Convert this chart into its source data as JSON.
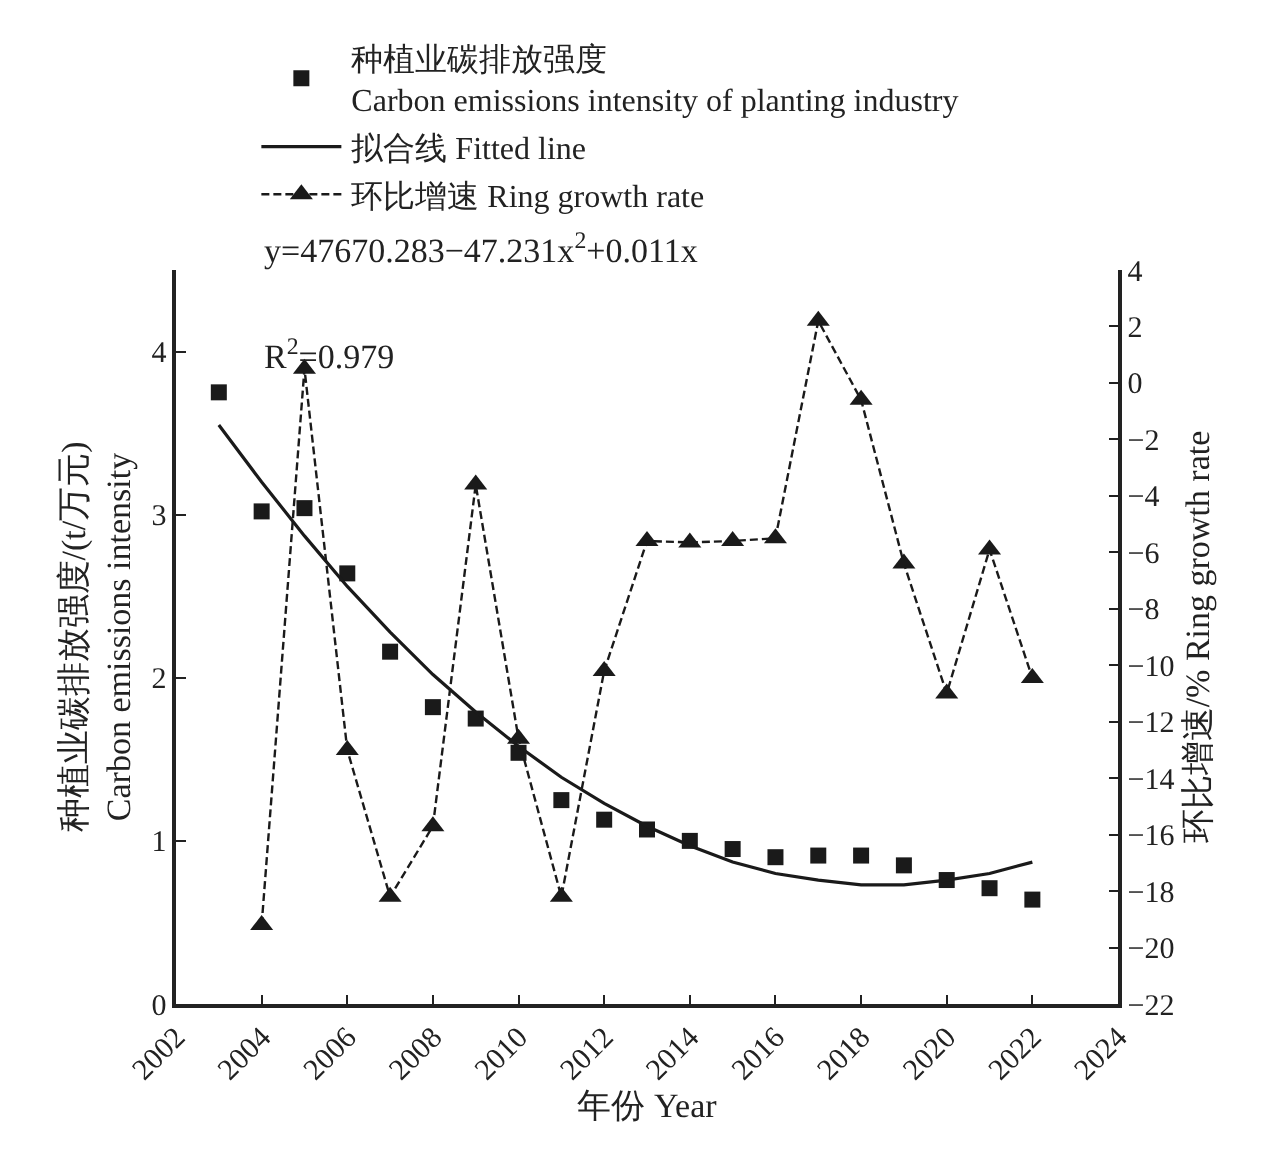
{
  "chart_data": {
    "type": "scatter",
    "xlabel": "年份 Year",
    "ylabel": "种植业碳排放强度/(t/万元)\nCarbon emissions intensity",
    "y2label": "环比增速/% Ring growth rate",
    "xlim": [
      2002,
      2024
    ],
    "xticks": [
      2002,
      2004,
      2006,
      2008,
      2010,
      2012,
      2014,
      2016,
      2018,
      2020,
      2022,
      2024
    ],
    "ylim": [
      0,
      4.5
    ],
    "yticks": [
      0,
      1,
      2,
      3,
      4
    ],
    "y2lim": [
      -22,
      4
    ],
    "y2ticks": [
      -22,
      -20,
      -18,
      -16,
      -14,
      -12,
      -10,
      -8,
      -6,
      -4,
      -2,
      0,
      2,
      4
    ],
    "grid": false,
    "legend": "top left",
    "annotations": [
      "y=47670.283−47.231x$^{2}$+0.011x",
      "R$^{2}$=0.979"
    ],
    "series": [
      {
        "name": "种植业碳排放强度\nCarbon emissions intensity of planting industry",
        "marker": "square",
        "color": "#1a1a1a",
        "x": [
          2003,
          2004,
          2005,
          2006,
          2007,
          2008,
          2009,
          2010,
          2011,
          2012,
          2013,
          2014,
          2015,
          2016,
          2017,
          2018,
          2019,
          2020,
          2021,
          2022
        ],
        "values": [
          3.75,
          3.02,
          3.04,
          2.64,
          2.16,
          1.82,
          1.75,
          1.54,
          1.25,
          1.13,
          1.07,
          1.0,
          0.95,
          0.9,
          0.91,
          0.91,
          0.85,
          0.76,
          0.71,
          0.64
        ]
      },
      {
        "name": "拟合线 Fitted line",
        "type": "line",
        "line_style": "solid",
        "marker": "none",
        "color": "#1a1a1a",
        "x": [
          2003,
          2004,
          2005,
          2006,
          2007,
          2008,
          2009,
          2010,
          2011,
          2012,
          2013,
          2014,
          2015,
          2016,
          2017,
          2018,
          2019,
          2020,
          2021,
          2022
        ],
        "values": [
          3.55,
          3.2,
          2.87,
          2.56,
          2.28,
          2.02,
          1.79,
          1.58,
          1.39,
          1.23,
          1.09,
          0.97,
          0.87,
          0.8,
          0.76,
          0.73,
          0.73,
          0.76,
          0.8,
          0.87
        ]
      },
      {
        "name": "环比增速 Ring growth rate",
        "type": "line",
        "line_style": "dashed",
        "marker": "triangle",
        "axis": "y2",
        "color": "#1a1a1a",
        "x": [
          2004,
          2005,
          2006,
          2007,
          2008,
          2009,
          2010,
          2011,
          2012,
          2013,
          2014,
          2015,
          2016,
          2017,
          2018,
          2019,
          2020,
          2021,
          2022
        ],
        "values": [
          -19.2,
          0.5,
          -13.0,
          -18.2,
          -15.7,
          -3.6,
          -12.6,
          -18.2,
          -10.2,
          -5.6,
          -5.65,
          -5.6,
          -5.5,
          2.2,
          -0.6,
          -6.4,
          -11.0,
          -5.9,
          -10.45
        ]
      }
    ]
  }
}
